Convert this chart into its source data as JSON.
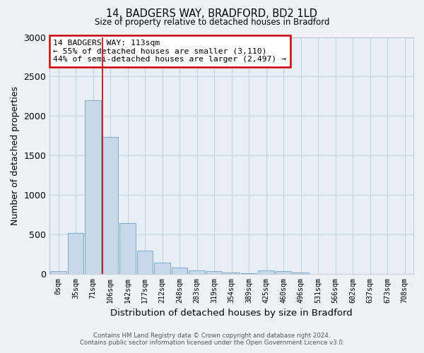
{
  "title1": "14, BADGERS WAY, BRADFORD, BD2 1LD",
  "title2": "Size of property relative to detached houses in Bradford",
  "xlabel": "Distribution of detached houses by size in Bradford",
  "ylabel": "Number of detached properties",
  "categories": [
    "0sqm",
    "35sqm",
    "71sqm",
    "106sqm",
    "142sqm",
    "177sqm",
    "212sqm",
    "248sqm",
    "283sqm",
    "319sqm",
    "354sqm",
    "389sqm",
    "425sqm",
    "460sqm",
    "496sqm",
    "531sqm",
    "566sqm",
    "602sqm",
    "637sqm",
    "673sqm",
    "708sqm"
  ],
  "bar_values": [
    30,
    520,
    2200,
    1730,
    640,
    290,
    145,
    80,
    45,
    30,
    20,
    10,
    40,
    30,
    20,
    0,
    0,
    0,
    0,
    0,
    0
  ],
  "bar_color": "#c8d8ea",
  "bar_edge_color": "#7aadcc",
  "ylim": [
    0,
    3000
  ],
  "yticks": [
    0,
    500,
    1000,
    1500,
    2000,
    2500,
    3000
  ],
  "property_line_x": 2.55,
  "property_line_color": "#cc0000",
  "annotation_text": "14 BADGERS WAY: 113sqm\n← 55% of detached houses are smaller (3,110)\n44% of semi-detached houses are larger (2,497) →",
  "annotation_box_color": "#cc0000",
  "footer_line1": "Contains HM Land Registry data © Crown copyright and database right 2024.",
  "footer_line2": "Contains public sector information licensed under the Open Government Licence v3.0.",
  "bg_color": "#eef2f7",
  "plot_bg_color": "#e8eef5",
  "grid_color": "#c5d3e0"
}
